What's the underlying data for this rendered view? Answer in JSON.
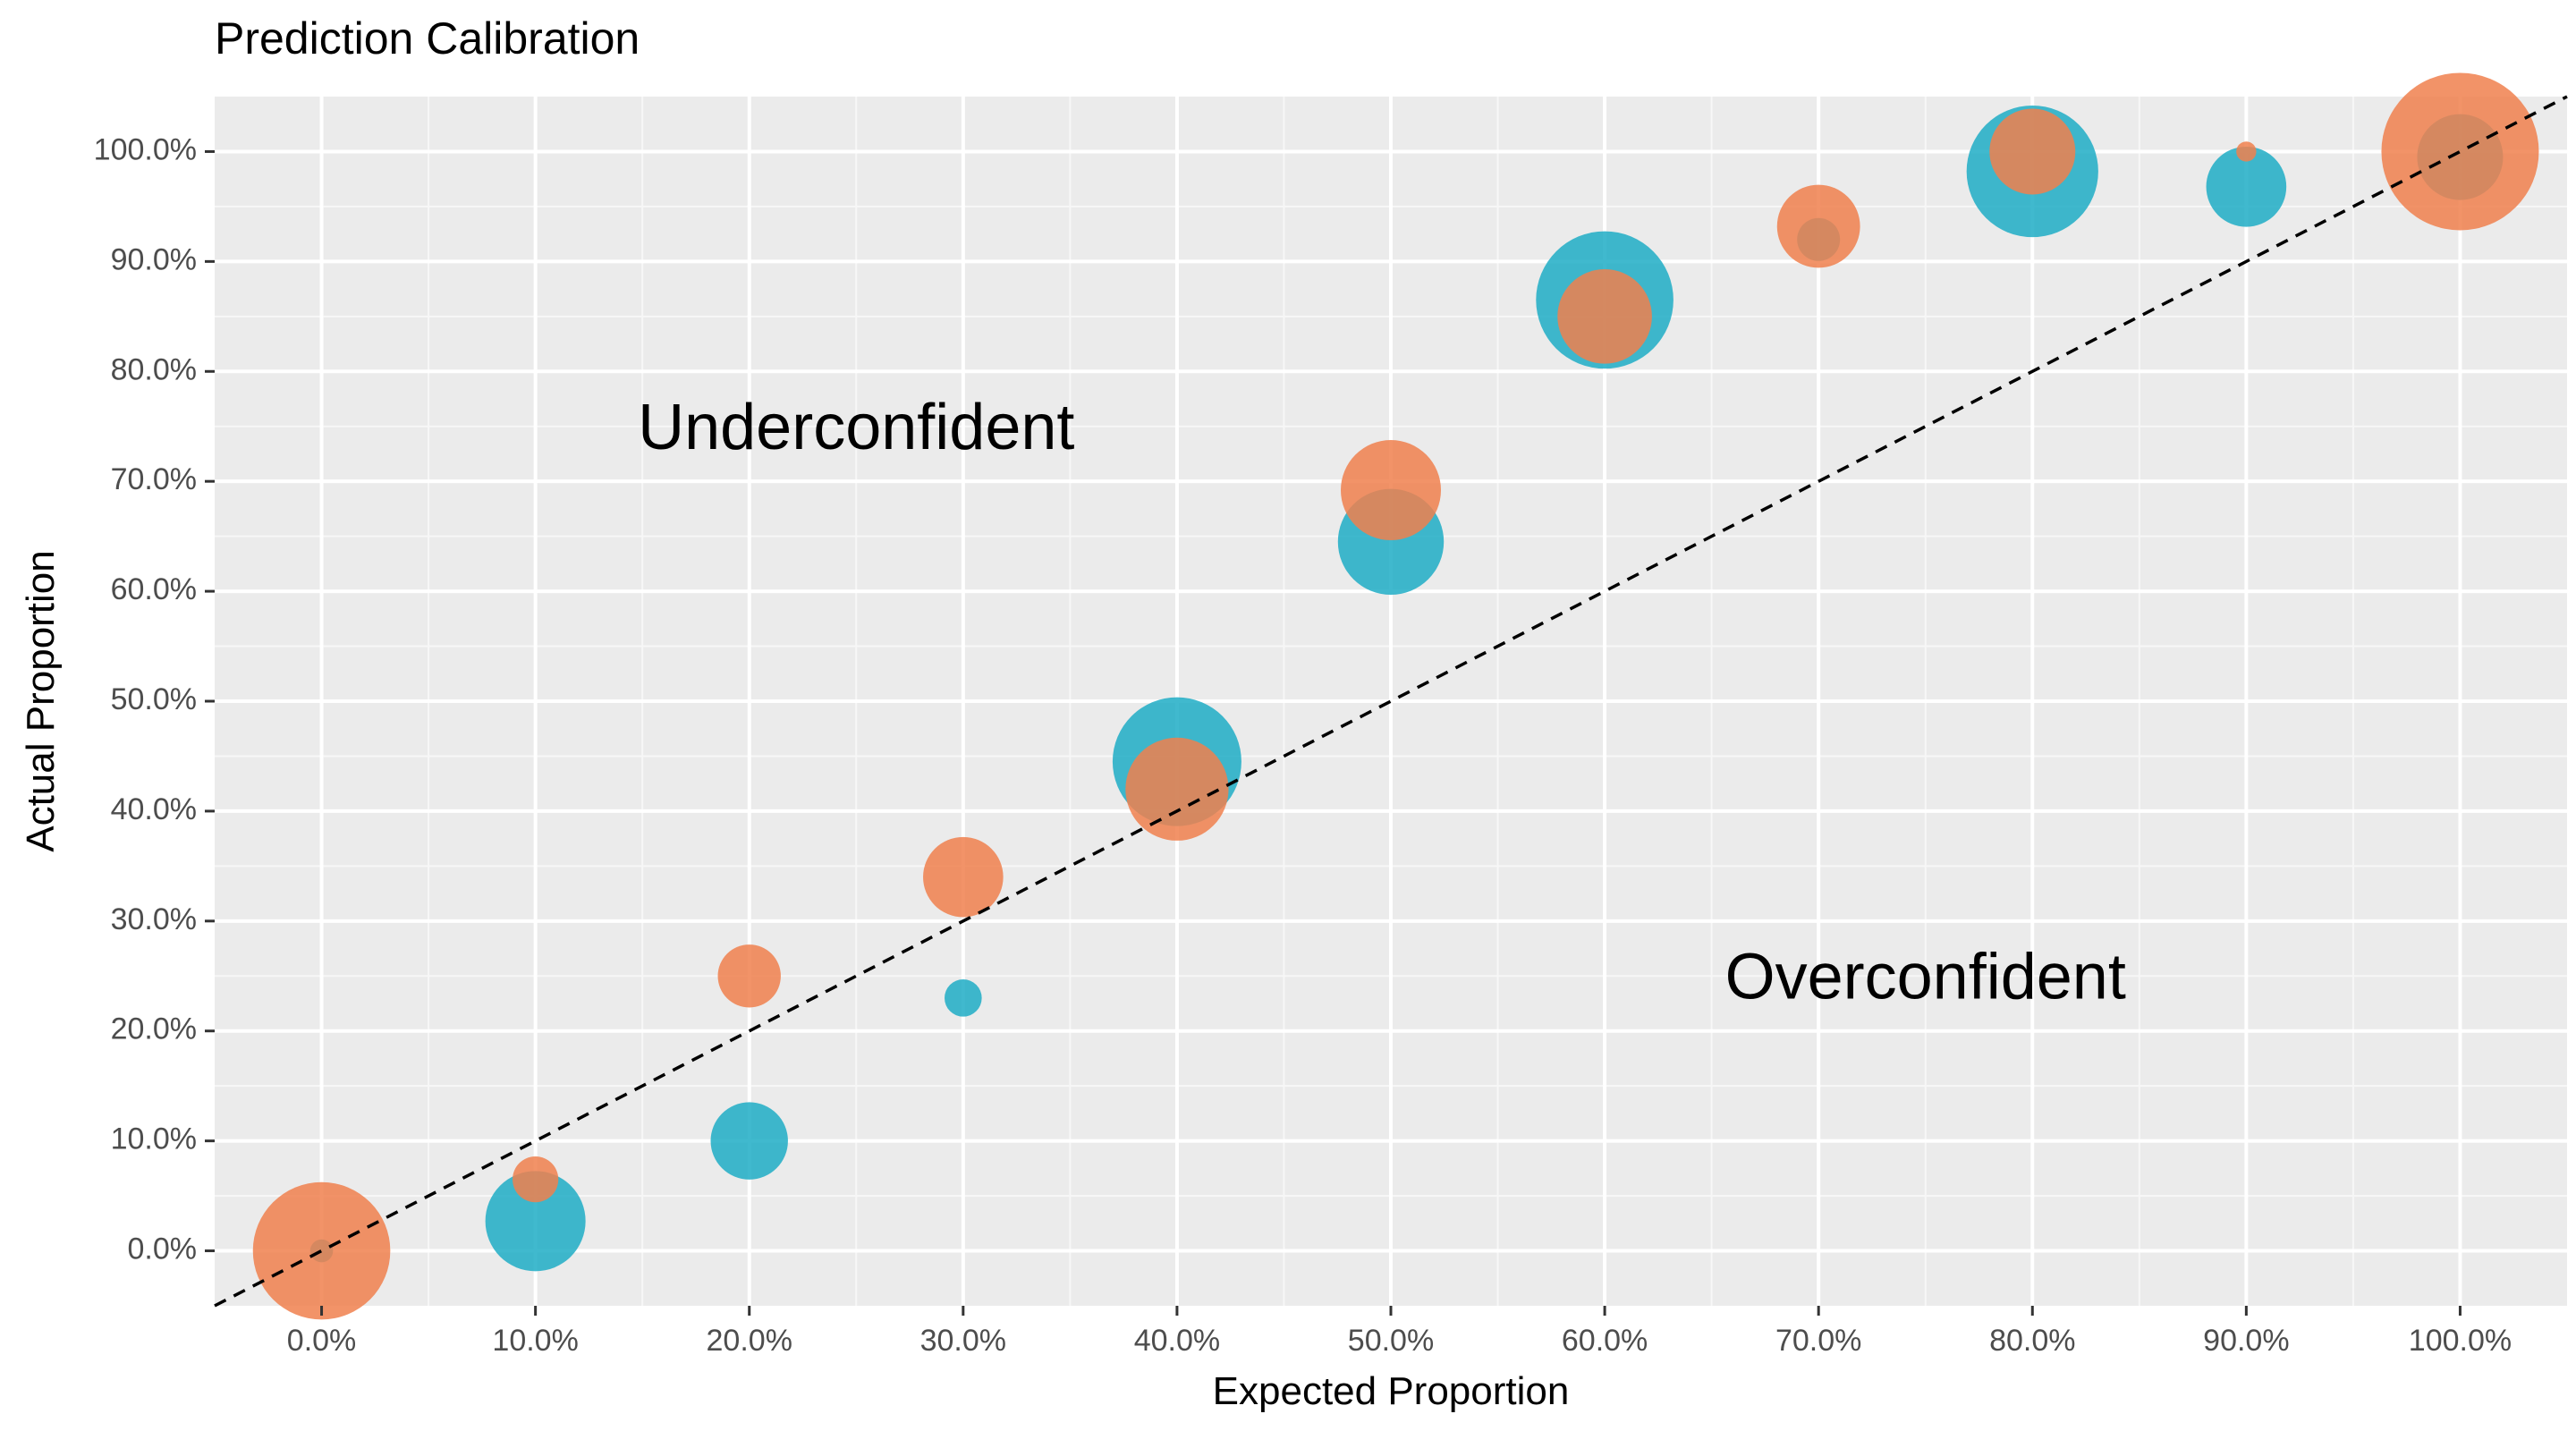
{
  "chart_data": {
    "type": "scatter",
    "title": "Prediction Calibration",
    "xlabel": "Expected Proportion",
    "ylabel": "Actual Proportion",
    "xlim": [
      -0.05,
      1.05
    ],
    "ylim": [
      -0.05,
      1.05
    ],
    "x_ticks": [
      0.0,
      0.1,
      0.2,
      0.3,
      0.4,
      0.5,
      0.6,
      0.7,
      0.8,
      0.9,
      1.0
    ],
    "x_tick_labels": [
      "0.0%",
      "10.0%",
      "20.0%",
      "30.0%",
      "40.0%",
      "50.0%",
      "60.0%",
      "70.0%",
      "80.0%",
      "90.0%",
      "100.0%"
    ],
    "y_ticks": [
      0.0,
      0.1,
      0.2,
      0.3,
      0.4,
      0.5,
      0.6,
      0.7,
      0.8,
      0.9,
      1.0
    ],
    "y_tick_labels": [
      "0.0%",
      "10.0%",
      "20.0%",
      "30.0%",
      "40.0%",
      "50.0%",
      "60.0%",
      "70.0%",
      "80.0%",
      "90.0%",
      "100.0%"
    ],
    "grid": true,
    "reference_line": {
      "slope": 1,
      "intercept": 0,
      "style": "dashed",
      "color": "#000000"
    },
    "annotations": [
      {
        "text": "Underconfident",
        "x": 0.25,
        "y": 0.745
      },
      {
        "text": "Overconfident",
        "x": 0.75,
        "y": 0.245
      }
    ],
    "series": [
      {
        "color": "#1fadc5",
        "points": [
          {
            "x": 0.0,
            "y": 0.0,
            "size": 0.8
          },
          {
            "x": 0.1,
            "y": 0.027,
            "size": 3.5
          },
          {
            "x": 0.2,
            "y": 0.1,
            "size": 2.7
          },
          {
            "x": 0.3,
            "y": 0.23,
            "size": 1.3
          },
          {
            "x": 0.4,
            "y": 0.445,
            "size": 4.5
          },
          {
            "x": 0.5,
            "y": 0.645,
            "size": 3.7
          },
          {
            "x": 0.6,
            "y": 0.865,
            "size": 4.8
          },
          {
            "x": 0.7,
            "y": 0.92,
            "size": 1.5
          },
          {
            "x": 0.8,
            "y": 0.982,
            "size": 4.6
          },
          {
            "x": 0.9,
            "y": 0.968,
            "size": 2.8
          },
          {
            "x": 1.0,
            "y": 0.995,
            "size": 3.0
          }
        ]
      },
      {
        "color": "#f0804e",
        "points": [
          {
            "x": 0.0,
            "y": 0.0,
            "size": 4.8
          },
          {
            "x": 0.1,
            "y": 0.065,
            "size": 1.6
          },
          {
            "x": 0.2,
            "y": 0.25,
            "size": 2.2
          },
          {
            "x": 0.3,
            "y": 0.34,
            "size": 2.8
          },
          {
            "x": 0.4,
            "y": 0.42,
            "size": 3.6
          },
          {
            "x": 0.5,
            "y": 0.692,
            "size": 3.5
          },
          {
            "x": 0.6,
            "y": 0.85,
            "size": 3.3
          },
          {
            "x": 0.7,
            "y": 0.932,
            "size": 2.9
          },
          {
            "x": 0.8,
            "y": 1.0,
            "size": 3.0
          },
          {
            "x": 0.9,
            "y": 1.0,
            "size": 0.7
          },
          {
            "x": 1.0,
            "y": 1.0,
            "size": 5.5
          }
        ]
      }
    ]
  }
}
